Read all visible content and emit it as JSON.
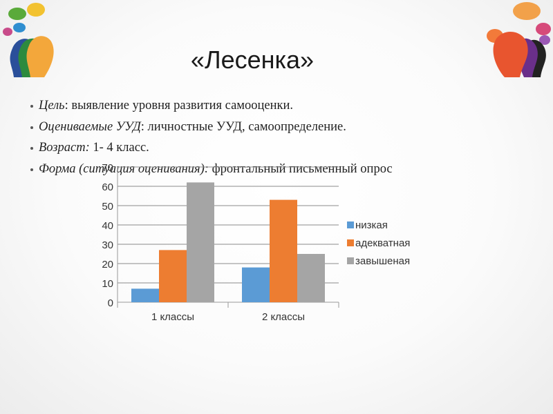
{
  "slide": {
    "title": "«Лесенка»",
    "bullets": [
      {
        "label": "Цель",
        "sep": ": ",
        "text": "выявление уровня развития самооценки."
      },
      {
        "label": "Оцениваемые УУД",
        "sep": ": ",
        "text": "личностные УУД, самоопределение."
      },
      {
        "label": "Возраст:",
        "sep": "  ",
        "text": "1- 4 класс."
      },
      {
        "label": "Форма (ситуация оценивания):",
        "sep": " ",
        "text": "фронтальный письменный опрос"
      }
    ]
  },
  "decor": {
    "left_icon": "colorful-heads-speech-bubbles-icon",
    "right_icon": "colorful-heads-speech-bubbles-icon"
  },
  "chart_data": {
    "type": "bar",
    "categories": [
      "1 классы",
      "2 классы"
    ],
    "series": [
      {
        "name": "низкая",
        "values": [
          7,
          18
        ],
        "color": "#5b9bd5"
      },
      {
        "name": "адекватная",
        "values": [
          27,
          53
        ],
        "color": "#ed7d31"
      },
      {
        "name": "завышеная",
        "values": [
          62,
          25
        ],
        "color": "#a5a5a5"
      }
    ],
    "ylim": [
      0,
      70
    ],
    "yticks": [
      0,
      10,
      20,
      30,
      40,
      50,
      60,
      70
    ],
    "grid": true,
    "legend": "right"
  }
}
